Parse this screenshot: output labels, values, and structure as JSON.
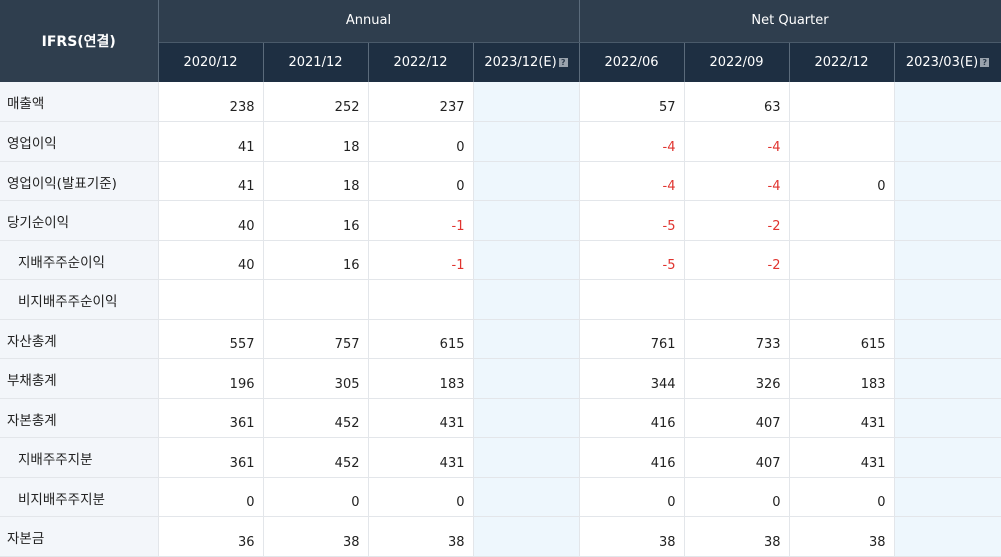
{
  "header": {
    "corner_label": "IFRS(연결)",
    "groups": [
      "Annual",
      "Net Quarter"
    ],
    "columns": [
      "2020/12",
      "2021/12",
      "2022/12",
      "2023/12(E)",
      "2022/06",
      "2022/09",
      "2022/12",
      "2023/03(E)"
    ]
  },
  "rows": [
    {
      "label": "매출액",
      "indent": false,
      "values": [
        "238",
        "252",
        "237",
        "",
        "57",
        "63",
        "",
        ""
      ]
    },
    {
      "label": "영업이익",
      "indent": false,
      "values": [
        "41",
        "18",
        "0",
        "",
        "-4",
        "-4",
        "",
        ""
      ]
    },
    {
      "label": "영업이익(발표기준)",
      "indent": false,
      "values": [
        "41",
        "18",
        "0",
        "",
        "-4",
        "-4",
        "0",
        ""
      ]
    },
    {
      "label": "당기순이익",
      "indent": false,
      "values": [
        "40",
        "16",
        "-1",
        "",
        "-5",
        "-2",
        "",
        ""
      ]
    },
    {
      "label": "지배주주순이익",
      "indent": true,
      "values": [
        "40",
        "16",
        "-1",
        "",
        "-5",
        "-2",
        "",
        ""
      ]
    },
    {
      "label": "비지배주주순이익",
      "indent": true,
      "values": [
        "",
        "",
        "",
        "",
        "",
        "",
        "",
        ""
      ]
    },
    {
      "label": "자산총계",
      "indent": false,
      "values": [
        "557",
        "757",
        "615",
        "",
        "761",
        "733",
        "615",
        ""
      ]
    },
    {
      "label": "부채총계",
      "indent": false,
      "values": [
        "196",
        "305",
        "183",
        "",
        "344",
        "326",
        "183",
        ""
      ]
    },
    {
      "label": "자본총계",
      "indent": false,
      "values": [
        "361",
        "452",
        "431",
        "",
        "416",
        "407",
        "431",
        ""
      ]
    },
    {
      "label": "지배주주지분",
      "indent": true,
      "values": [
        "361",
        "452",
        "431",
        "",
        "416",
        "407",
        "431",
        ""
      ]
    },
    {
      "label": "비지배주주지분",
      "indent": true,
      "values": [
        "0",
        "0",
        "0",
        "",
        "0",
        "0",
        "0",
        ""
      ]
    },
    {
      "label": "자본금",
      "indent": false,
      "values": [
        "36",
        "38",
        "38",
        "",
        "38",
        "38",
        "38",
        ""
      ]
    }
  ],
  "estimate_icon": "question-icon",
  "colors": {
    "header_dark": "#1e2f42",
    "header": "#2f3e4e",
    "negative": "#e0342f",
    "estimate_bg": "#eef7fd",
    "label_bg": "#f3f6fa"
  }
}
